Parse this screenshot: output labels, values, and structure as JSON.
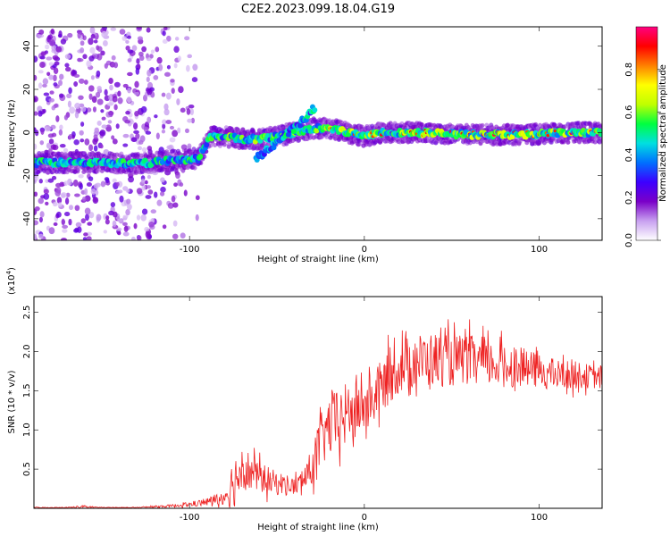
{
  "page": {
    "title": "C2E2.2023.099.18.04.G19"
  },
  "chart_data": [
    {
      "type": "heatmap",
      "xlabel": "Height of straight line (km)",
      "ylabel": "Frequency (Hz)",
      "xlim": [
        -189,
        136
      ],
      "ylim": [
        -50,
        49
      ],
      "x_ticks": [
        -100,
        0,
        100
      ],
      "y_ticks": [
        -40,
        -20,
        0,
        20,
        40
      ],
      "colorbar": {
        "label": "Normalized spectral amplitude",
        "range": [
          0.0,
          1.0
        ],
        "ticks": [
          "0.0",
          "0.2",
          "0.4",
          "0.6",
          "0.8"
        ],
        "colors": [
          "#ffffff",
          "#c8a0f0",
          "#7a00c8",
          "#3c00ff",
          "#0070ff",
          "#00e0e0",
          "#00ff40",
          "#c0ff00",
          "#ffff00",
          "#ff8000",
          "#ff0000",
          "#ff0080"
        ]
      },
      "ridge": {
        "x": [
          -189,
          -170,
          -150,
          -130,
          -110,
          -95,
          -88,
          -80,
          -70,
          -60,
          -50,
          -40,
          -30,
          -20,
          -10,
          0,
          10,
          30,
          60,
          90,
          120,
          136
        ],
        "freq_hz": [
          -14,
          -14,
          -14,
          -14.5,
          -13,
          -12,
          -2,
          -2,
          -3,
          -3,
          -2,
          0,
          2,
          2,
          0,
          -2,
          0,
          0,
          -1,
          -1,
          0,
          0
        ]
      },
      "branch": {
        "x": [
          -62,
          -55,
          -48,
          -40,
          -33,
          -28
        ],
        "freq_hz": [
          -12,
          -8,
          -3,
          2,
          7,
          12
        ]
      }
    },
    {
      "type": "line",
      "xlabel": "Height of straight line (km)",
      "ylabel": "SNR (10 * v/v)",
      "multiplier": "(x10",
      "multiplier_exp": "4",
      "multiplier_close": ")",
      "xlim": [
        -189,
        136
      ],
      "ylim": [
        0,
        2.7
      ],
      "x_ticks": [
        -100,
        0,
        100
      ],
      "y_ticks": [
        0.5,
        1.0,
        1.5,
        2.0,
        2.5
      ],
      "series": [
        {
          "color": "#ee2222",
          "x": [
            -189,
            -170,
            -160,
            -150,
            -130,
            -110,
            -100,
            -90,
            -80,
            -75,
            -70,
            -65,
            -60,
            -55,
            -50,
            -45,
            -40,
            -35,
            -30,
            -25,
            -20,
            -15,
            -10,
            -5,
            0,
            5,
            10,
            15,
            20,
            25,
            30,
            40,
            50,
            60,
            70,
            80,
            90,
            100,
            110,
            120,
            130,
            136
          ],
          "y": [
            0.01,
            0.01,
            0.02,
            0.01,
            0.01,
            0.03,
            0.05,
            0.08,
            0.15,
            0.32,
            0.55,
            0.45,
            0.4,
            0.35,
            0.32,
            0.3,
            0.28,
            0.35,
            0.52,
            0.85,
            1.05,
            1.1,
            1.2,
            1.25,
            1.3,
            1.4,
            1.55,
            1.7,
            1.8,
            1.85,
            1.88,
            1.9,
            1.88,
            1.9,
            1.85,
            1.82,
            1.8,
            1.75,
            1.7,
            1.7,
            1.68,
            1.66
          ],
          "amplitude": [
            0.005,
            0.005,
            0.02,
            0.005,
            0.005,
            0.02,
            0.03,
            0.05,
            0.1,
            0.35,
            0.3,
            0.25,
            0.2,
            0.18,
            0.15,
            0.14,
            0.12,
            0.15,
            0.25,
            0.35,
            0.4,
            0.45,
            0.4,
            0.35,
            0.35,
            0.35,
            0.35,
            0.35,
            0.35,
            0.35,
            0.35,
            0.35,
            0.33,
            0.32,
            0.3,
            0.28,
            0.25,
            0.22,
            0.2,
            0.18,
            0.15,
            0.15
          ]
        }
      ]
    }
  ]
}
